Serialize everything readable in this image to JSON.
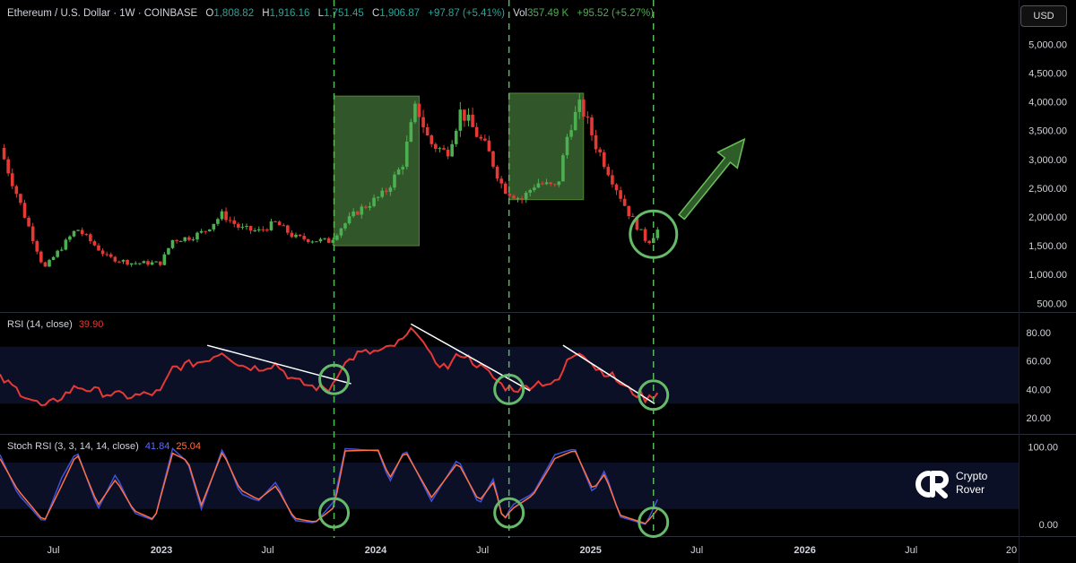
{
  "header": {
    "symbol": "Ethereum / U.S. Dollar · 1W · COINBASE",
    "o_label": "O",
    "o_value": "1,808.82",
    "h_label": "H",
    "h_value": "1,916.16",
    "l_label": "L",
    "l_value": "1,751.45",
    "c_label": "C",
    "c_value": "1,906.87",
    "change": "+97.87 (+5.41%)",
    "vol_label": "Vol",
    "vol_value": "357.49 K",
    "vol_change": "+95.52 (+5.27%)"
  },
  "currency_button": "USD",
  "rsi": {
    "label": "RSI (14, close)",
    "value": "39.90"
  },
  "stoch": {
    "label": "Stoch RSI (3, 3, 14, 14, close)",
    "k": "41.84",
    "d": "25.04"
  },
  "watermark": {
    "line1": "Crypto",
    "line2": "Rover"
  },
  "colors": {
    "bg": "#000000",
    "up": "#4caf50",
    "down": "#e53935",
    "rsi_line": "#e53935",
    "stoch_k": "#3f51d8",
    "stoch_d": "#ff7043",
    "highlight_fill": "#3d6b34",
    "circle": "#66bb6a",
    "dashed": "#5cb85c",
    "band": "#0b1026"
  },
  "chart_data": [
    {
      "type": "candlestick",
      "title": "Ethereum / U.S. Dollar · 1W · COINBASE",
      "ylim": [
        350,
        5300
      ],
      "y_ticks": [
        500,
        1000,
        1500,
        2000,
        2500,
        3000,
        3500,
        4000,
        4500,
        5000
      ],
      "y_tick_labels": [
        "500.00",
        "1,000.00",
        "1,500.00",
        "2,000.00",
        "2,500.00",
        "3,000.00",
        "3,500.00",
        "4,000.00",
        "4,500.00",
        "5,000.00"
      ],
      "x_tick_labels": [
        "Jul",
        "2023",
        "Jul",
        "2024",
        "Jul",
        "2025",
        "Jul",
        "2026",
        "Jul",
        "20"
      ],
      "anchors": [
        {
          "date": "2022-04-01",
          "close": 3200
        },
        {
          "date": "2022-06-15",
          "close": 1100
        },
        {
          "date": "2022-08-10",
          "close": 1800
        },
        {
          "date": "2022-10-01",
          "close": 1300
        },
        {
          "date": "2022-11-10",
          "close": 1200
        },
        {
          "date": "2022-12-31",
          "close": 1200
        },
        {
          "date": "2023-01-20",
          "close": 1600
        },
        {
          "date": "2023-02-20",
          "close": 1650
        },
        {
          "date": "2023-03-15",
          "close": 1750
        },
        {
          "date": "2023-04-15",
          "close": 2050
        },
        {
          "date": "2023-05-15",
          "close": 1800
        },
        {
          "date": "2023-06-15",
          "close": 1750
        },
        {
          "date": "2023-07-15",
          "close": 1900
        },
        {
          "date": "2023-08-15",
          "close": 1650
        },
        {
          "date": "2023-09-15",
          "close": 1600
        },
        {
          "date": "2023-10-15",
          "close": 1580
        },
        {
          "date": "2023-11-01",
          "close": 1800
        },
        {
          "date": "2023-12-01",
          "close": 2100
        },
        {
          "date": "2024-01-15",
          "close": 2400
        },
        {
          "date": "2024-02-15",
          "close": 2900
        },
        {
          "date": "2024-03-10",
          "close": 3950
        },
        {
          "date": "2024-04-01",
          "close": 3300
        },
        {
          "date": "2024-05-01",
          "close": 3100
        },
        {
          "date": "2024-05-25",
          "close": 3850
        },
        {
          "date": "2024-06-20",
          "close": 3450
        },
        {
          "date": "2024-07-10",
          "close": 3150
        },
        {
          "date": "2024-08-05",
          "close": 2500
        },
        {
          "date": "2024-09-05",
          "close": 2300
        },
        {
          "date": "2024-10-01",
          "close": 2600
        },
        {
          "date": "2024-11-05",
          "close": 2500
        },
        {
          "date": "2024-11-25",
          "close": 3550
        },
        {
          "date": "2024-12-15",
          "close": 3950
        },
        {
          "date": "2025-01-10",
          "close": 3250
        },
        {
          "date": "2025-02-05",
          "close": 2700
        },
        {
          "date": "2025-03-05",
          "close": 2100
        },
        {
          "date": "2025-04-08",
          "close": 1550
        },
        {
          "date": "2025-05-01",
          "close": 1850
        }
      ],
      "highlight_boxes": [
        {
          "from": "2023-10-22",
          "to": "2024-03-15",
          "y_low": 1500,
          "y_high": 4100
        },
        {
          "from": "2024-08-15",
          "to": "2024-12-20",
          "y_low": 2300,
          "y_high": 4150
        }
      ],
      "circle_marker": {
        "date": "2025-04-18",
        "value": 1700
      },
      "arrow": {
        "from_date": "2025-06-05",
        "from_value": 2000,
        "to_date": "2025-09-20",
        "to_value": 3350
      }
    },
    {
      "type": "line",
      "title": "RSI (14, close)",
      "ylim": [
        10,
        90
      ],
      "y_ticks": [
        20,
        40,
        60,
        80
      ],
      "y_tick_labels": [
        "20.00",
        "40.00",
        "60.00",
        "80.00"
      ],
      "band": [
        30,
        70
      ],
      "anchors": [
        {
          "date": "2022-04-01",
          "value": 48
        },
        {
          "date": "2022-06-15",
          "value": 27
        },
        {
          "date": "2022-08-10",
          "value": 42
        },
        {
          "date": "2022-10-01",
          "value": 37
        },
        {
          "date": "2022-11-10",
          "value": 35
        },
        {
          "date": "2022-12-31",
          "value": 38
        },
        {
          "date": "2023-01-20",
          "value": 55
        },
        {
          "date": "2023-02-20",
          "value": 58
        },
        {
          "date": "2023-03-15",
          "value": 60
        },
        {
          "date": "2023-04-15",
          "value": 67
        },
        {
          "date": "2023-05-15",
          "value": 57
        },
        {
          "date": "2023-06-15",
          "value": 55
        },
        {
          "date": "2023-07-15",
          "value": 58
        },
        {
          "date": "2023-08-15",
          "value": 46
        },
        {
          "date": "2023-09-15",
          "value": 42
        },
        {
          "date": "2023-10-15",
          "value": 40
        },
        {
          "date": "2023-11-01",
          "value": 55
        },
        {
          "date": "2023-12-01",
          "value": 65
        },
        {
          "date": "2024-01-15",
          "value": 67
        },
        {
          "date": "2024-02-15",
          "value": 74
        },
        {
          "date": "2024-03-10",
          "value": 84
        },
        {
          "date": "2024-04-01",
          "value": 63
        },
        {
          "date": "2024-05-01",
          "value": 55
        },
        {
          "date": "2024-05-25",
          "value": 66
        },
        {
          "date": "2024-06-20",
          "value": 58
        },
        {
          "date": "2024-07-10",
          "value": 52
        },
        {
          "date": "2024-08-05",
          "value": 42
        },
        {
          "date": "2024-09-05",
          "value": 40
        },
        {
          "date": "2024-10-01",
          "value": 45
        },
        {
          "date": "2024-11-05",
          "value": 44
        },
        {
          "date": "2024-11-25",
          "value": 62
        },
        {
          "date": "2024-12-15",
          "value": 68
        },
        {
          "date": "2025-01-10",
          "value": 55
        },
        {
          "date": "2025-02-05",
          "value": 50
        },
        {
          "date": "2025-03-05",
          "value": 40
        },
        {
          "date": "2025-04-08",
          "value": 33
        },
        {
          "date": "2025-05-01",
          "value": 39.9
        }
      ],
      "trendlines": [
        {
          "from_date": "2023-03-20",
          "from_value": 71,
          "to_date": "2023-11-20",
          "to_value": 44
        },
        {
          "from_date": "2024-03-01",
          "from_value": 86,
          "to_date": "2024-09-20",
          "to_value": 39
        },
        {
          "from_date": "2024-11-15",
          "from_value": 71,
          "to_date": "2025-04-20",
          "to_value": 30
        }
      ],
      "circle_markers": [
        {
          "date": "2023-10-22",
          "value": 47
        },
        {
          "date": "2024-08-15",
          "value": 40
        },
        {
          "date": "2025-04-18",
          "value": 36
        }
      ]
    },
    {
      "type": "line",
      "title": "Stoch RSI (3, 3, 14, 14, close)",
      "ylim": [
        -15,
        110
      ],
      "y_ticks": [
        0,
        100
      ],
      "y_tick_labels": [
        "0.00",
        "100.00"
      ],
      "band": [
        20,
        80
      ],
      "series": [
        {
          "name": "K",
          "anchors": [
            {
              "date": "2022-04-01",
              "value": 90
            },
            {
              "date": "2022-05-01",
              "value": 40
            },
            {
              "date": "2022-06-15",
              "value": 2
            },
            {
              "date": "2022-07-15",
              "value": 60
            },
            {
              "date": "2022-08-10",
              "value": 95
            },
            {
              "date": "2022-09-15",
              "value": 20
            },
            {
              "date": "2022-10-15",
              "value": 65
            },
            {
              "date": "2022-11-15",
              "value": 15
            },
            {
              "date": "2022-12-20",
              "value": 5
            },
            {
              "date": "2023-01-20",
              "value": 98
            },
            {
              "date": "2023-02-15",
              "value": 80
            },
            {
              "date": "2023-03-10",
              "value": 20
            },
            {
              "date": "2023-04-15",
              "value": 98
            },
            {
              "date": "2023-05-15",
              "value": 40
            },
            {
              "date": "2023-06-15",
              "value": 30
            },
            {
              "date": "2023-07-15",
              "value": 55
            },
            {
              "date": "2023-08-15",
              "value": 5
            },
            {
              "date": "2023-09-20",
              "value": 2
            },
            {
              "date": "2023-10-22",
              "value": 30
            },
            {
              "date": "2023-11-10",
              "value": 98
            },
            {
              "date": "2024-01-05",
              "value": 95
            },
            {
              "date": "2024-01-25",
              "value": 55
            },
            {
              "date": "2024-02-20",
              "value": 98
            },
            {
              "date": "2024-04-05",
              "value": 30
            },
            {
              "date": "2024-05-20",
              "value": 85
            },
            {
              "date": "2024-06-25",
              "value": 25
            },
            {
              "date": "2024-07-20",
              "value": 60
            },
            {
              "date": "2024-08-05",
              "value": 3
            },
            {
              "date": "2024-08-20",
              "value": 25
            },
            {
              "date": "2024-09-25",
              "value": 40
            },
            {
              "date": "2024-11-01",
              "value": 90
            },
            {
              "date": "2024-12-05",
              "value": 98
            },
            {
              "date": "2025-01-05",
              "value": 40
            },
            {
              "date": "2025-01-25",
              "value": 70
            },
            {
              "date": "2025-02-20",
              "value": 10
            },
            {
              "date": "2025-04-05",
              "value": 0
            },
            {
              "date": "2025-05-01",
              "value": 41.84
            }
          ]
        },
        {
          "name": "D",
          "anchors": [
            {
              "date": "2022-04-01",
              "value": 85
            },
            {
              "date": "2022-05-01",
              "value": 45
            },
            {
              "date": "2022-06-15",
              "value": 4
            },
            {
              "date": "2022-07-15",
              "value": 50
            },
            {
              "date": "2022-08-10",
              "value": 92
            },
            {
              "date": "2022-09-15",
              "value": 25
            },
            {
              "date": "2022-10-15",
              "value": 58
            },
            {
              "date": "2022-11-15",
              "value": 18
            },
            {
              "date": "2022-12-20",
              "value": 6
            },
            {
              "date": "2023-01-20",
              "value": 92
            },
            {
              "date": "2023-02-15",
              "value": 82
            },
            {
              "date": "2023-03-10",
              "value": 25
            },
            {
              "date": "2023-04-15",
              "value": 94
            },
            {
              "date": "2023-05-15",
              "value": 45
            },
            {
              "date": "2023-06-15",
              "value": 32
            },
            {
              "date": "2023-07-15",
              "value": 50
            },
            {
              "date": "2023-08-15",
              "value": 8
            },
            {
              "date": "2023-09-20",
              "value": 3
            },
            {
              "date": "2023-10-22",
              "value": 22
            },
            {
              "date": "2023-11-10",
              "value": 95
            },
            {
              "date": "2024-01-05",
              "value": 96
            },
            {
              "date": "2024-01-25",
              "value": 60
            },
            {
              "date": "2024-02-20",
              "value": 95
            },
            {
              "date": "2024-04-05",
              "value": 35
            },
            {
              "date": "2024-05-20",
              "value": 80
            },
            {
              "date": "2024-06-25",
              "value": 30
            },
            {
              "date": "2024-07-20",
              "value": 55
            },
            {
              "date": "2024-08-05",
              "value": 5
            },
            {
              "date": "2024-08-20",
              "value": 20
            },
            {
              "date": "2024-09-25",
              "value": 38
            },
            {
              "date": "2024-11-01",
              "value": 85
            },
            {
              "date": "2024-12-05",
              "value": 96
            },
            {
              "date": "2025-01-05",
              "value": 45
            },
            {
              "date": "2025-01-25",
              "value": 65
            },
            {
              "date": "2025-02-20",
              "value": 12
            },
            {
              "date": "2025-04-05",
              "value": 1
            },
            {
              "date": "2025-05-01",
              "value": 25.04
            }
          ]
        }
      ],
      "circle_markers": [
        {
          "date": "2023-10-22",
          "value": 15
        },
        {
          "date": "2024-08-15",
          "value": 15
        },
        {
          "date": "2025-04-18",
          "value": 3
        }
      ]
    }
  ],
  "vlines": [
    "2023-10-22",
    "2024-08-15",
    "2025-04-18"
  ]
}
